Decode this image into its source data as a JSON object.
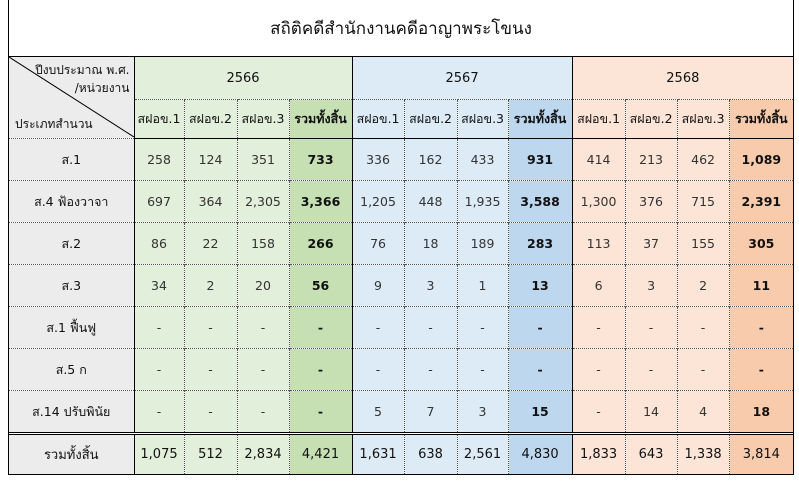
{
  "title": "สถิติคดีสำนักงานคดีอาญาพระโขนง",
  "corner": {
    "top": "ปีงบประมาณ พ.ศ.",
    "middle": "/หน่วยงาน",
    "bottom": "ประเภทสำนวน"
  },
  "years": [
    "2566",
    "2567",
    "2568"
  ],
  "subheaders": [
    "สฝอข.1",
    "สฝอข.2",
    "สฝอข.3",
    "รวมทั้งสิ้น"
  ],
  "colors": {
    "green_light": "#e2efda",
    "green_total": "#c6e0b4",
    "blue_light": "#ddebf7",
    "blue_total": "#bdd7ee",
    "orange_light": "#fce4d6",
    "orange_total": "#f8cbad"
  },
  "rows": [
    {
      "label": "ส.1",
      "values": [
        "258",
        "124",
        "351",
        "733",
        "336",
        "162",
        "433",
        "931",
        "414",
        "213",
        "462",
        "1,089"
      ]
    },
    {
      "label": "ส.4 ฟ้องวาจา",
      "values": [
        "697",
        "364",
        "2,305",
        "3,366",
        "1,205",
        "448",
        "1,935",
        "3,588",
        "1,300",
        "376",
        "715",
        "2,391"
      ]
    },
    {
      "label": "ส.2",
      "values": [
        "86",
        "22",
        "158",
        "266",
        "76",
        "18",
        "189",
        "283",
        "113",
        "37",
        "155",
        "305"
      ]
    },
    {
      "label": "ส.3",
      "values": [
        "34",
        "2",
        "20",
        "56",
        "9",
        "3",
        "1",
        "13",
        "6",
        "3",
        "2",
        "11"
      ]
    },
    {
      "label": "ส.1 ฟื้นฟู",
      "values": [
        "-",
        "-",
        "-",
        "-",
        "-",
        "-",
        "-",
        "-",
        "-",
        "-",
        "-",
        "-"
      ]
    },
    {
      "label": "ส.5 ก",
      "values": [
        "-",
        "-",
        "-",
        "-",
        "-",
        "-",
        "-",
        "-",
        "-",
        "-",
        "-",
        "-"
      ]
    },
    {
      "label": "ส.14 ปรับพินัย",
      "values": [
        "-",
        "-",
        "-",
        "-",
        "5",
        "7",
        "3",
        "15",
        "-",
        "14",
        "4",
        "18"
      ]
    }
  ],
  "total": {
    "label": "รวมทั้งสิ้น",
    "values": [
      "1,075",
      "512",
      "2,834",
      "4,421",
      "1,631",
      "638",
      "2,561",
      "4,830",
      "1,833",
      "643",
      "1,338",
      "3,814"
    ]
  }
}
